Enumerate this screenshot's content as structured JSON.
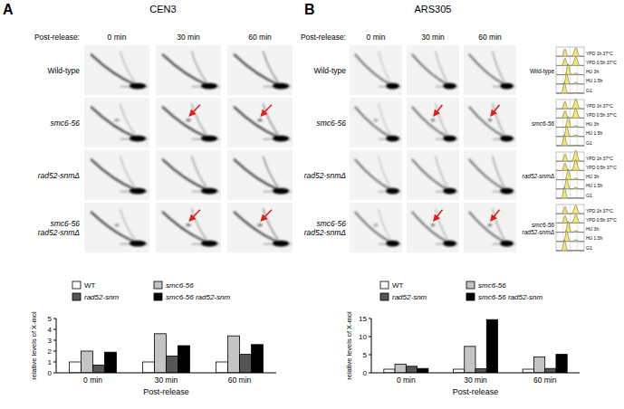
{
  "chart_data": [
    {
      "type": "bar",
      "x_label": "Post-release",
      "y_label": "relative levels of X-mol",
      "categories": [
        "0 min",
        "30 min",
        "60 min"
      ],
      "series": [
        {
          "name": "WT",
          "color": "#ffffff",
          "values": [
            1,
            1,
            1
          ]
        },
        {
          "name": "smc6-56",
          "color": "#c4c4c4",
          "values": [
            2.0,
            3.6,
            3.4
          ]
        },
        {
          "name": "rad52-snm",
          "color": "#555555",
          "values": [
            0.7,
            1.55,
            1.7
          ]
        },
        {
          "name": "smc6-56 rad52-snm",
          "color": "#000000",
          "values": [
            1.9,
            2.5,
            2.6
          ]
        }
      ],
      "ylim": [
        0,
        5
      ],
      "yticks": [
        0,
        1,
        2,
        3,
        4,
        5
      ],
      "grid": false,
      "legend": "top"
    },
    {
      "type": "bar",
      "x_label": "Post-release",
      "y_label": "relative levels of X-mol",
      "categories": [
        "0 min",
        "30 min",
        "60 min"
      ],
      "series": [
        {
          "name": "WT",
          "color": "#ffffff",
          "values": [
            1,
            1,
            1
          ]
        },
        {
          "name": "smc6-56",
          "color": "#c4c4c4",
          "values": [
            2.4,
            7.3,
            4.4
          ]
        },
        {
          "name": "rad52-snm",
          "color": "#555555",
          "values": [
            1.8,
            1.1,
            1.2
          ]
        },
        {
          "name": "smc6-56 rad52-snm",
          "color": "#000000",
          "values": [
            1.2,
            14.7,
            5.1
          ]
        }
      ],
      "ylim": [
        0,
        15
      ],
      "yticks": [
        0,
        5,
        10,
        15
      ],
      "grid": false,
      "legend": "top"
    }
  ],
  "figure": {
    "panels": [
      {
        "label": "A",
        "title": "CEN3",
        "time_heading": "Post-release:",
        "timepoints": [
          "0 min",
          "30 min",
          "60 min"
        ],
        "strains": [
          "Wild-type",
          "smc6-56",
          "rad52-snmΔ",
          "smc6-56 rad52-snmΔ"
        ],
        "arrows": [
          [
            false,
            false,
            false
          ],
          [
            false,
            true,
            true
          ],
          [
            false,
            false,
            false
          ],
          [
            false,
            true,
            true
          ]
        ]
      },
      {
        "label": "B",
        "title": "ARS305",
        "time_heading": "Post-release:",
        "timepoints": [
          "0 min",
          "30 min",
          "60 min"
        ],
        "strains": [
          "Wild-type",
          "smc6-56",
          "rad52-snmΔ",
          "smc6-56 rad52-snmΔ"
        ],
        "arrows": [
          [
            false,
            false,
            false
          ],
          [
            false,
            true,
            true
          ],
          [
            false,
            false,
            false
          ],
          [
            false,
            true,
            true
          ]
        ],
        "facs": {
          "samples": [
            "YPD 1h 37°C",
            "YPD 0.5h 37°C",
            "HU 3h",
            "HU 1.5h",
            "G1"
          ]
        }
      }
    ]
  }
}
